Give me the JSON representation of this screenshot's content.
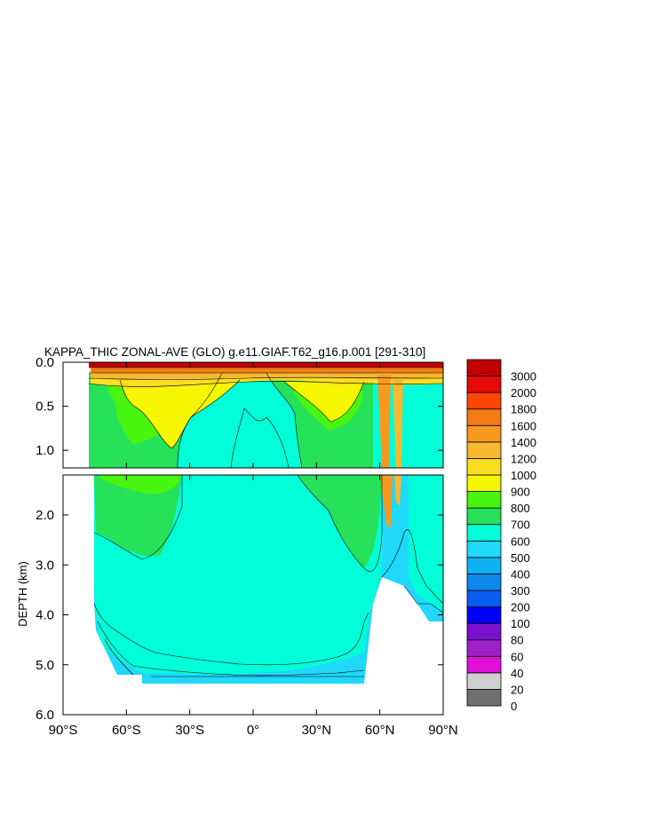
{
  "chart_data": {
    "type": "heatmap",
    "title": "KAPPA_THIC ZONAL-AVE (GLO) g.e11.GIAF.T62_g16.p.001 [291-310]",
    "ylabel": "DEPTH (km)",
    "xlabel": "",
    "x_ticks": [
      "90°S",
      "60°S",
      "30°S",
      "0°",
      "30°N",
      "60°N",
      "90°N"
    ],
    "x_tick_values": [
      -90,
      -60,
      -30,
      0,
      30,
      60,
      90
    ],
    "xlim": [
      -90,
      90
    ],
    "upper_panel": {
      "ylim": [
        0.0,
        1.2
      ],
      "y_ticks": [
        "0.0",
        "0.5",
        "1.0"
      ],
      "y_tick_values": [
        0.0,
        0.5,
        1.0
      ]
    },
    "lower_panel": {
      "ylim": [
        1.2,
        6.0
      ],
      "y_ticks": [
        "2.0",
        "3.0",
        "4.0",
        "5.0",
        "6.0"
      ],
      "y_tick_values": [
        2.0,
        3.0,
        4.0,
        5.0,
        6.0
      ]
    },
    "levels": [
      0,
      20,
      40,
      60,
      80,
      100,
      200,
      300,
      400,
      500,
      600,
      700,
      800,
      900,
      1000,
      1200,
      1400,
      1600,
      1800,
      2000,
      3000
    ],
    "level_labels": [
      "0",
      "20",
      "40",
      "60",
      "80",
      "100",
      "200",
      "300",
      "400",
      "500",
      "600",
      "700",
      "800",
      "900",
      "1000",
      "1200",
      "1400",
      "1600",
      "1800",
      "2000",
      "3000"
    ],
    "colors": [
      "#707070",
      "#d0d0d0",
      "#e010d8",
      "#a020c8",
      "#7a10d0",
      "#0000ff",
      "#0a5cf0",
      "#1088ee",
      "#10b0f4",
      "#20d8fa",
      "#00ffd8",
      "#25e25a",
      "#48f50e",
      "#f6f600",
      "#fadf20",
      "#f8b830",
      "#f89a20",
      "#f47c14",
      "#ff4500",
      "#e80a0a",
      "#c00000"
    ],
    "grid": false,
    "legend": "right"
  }
}
